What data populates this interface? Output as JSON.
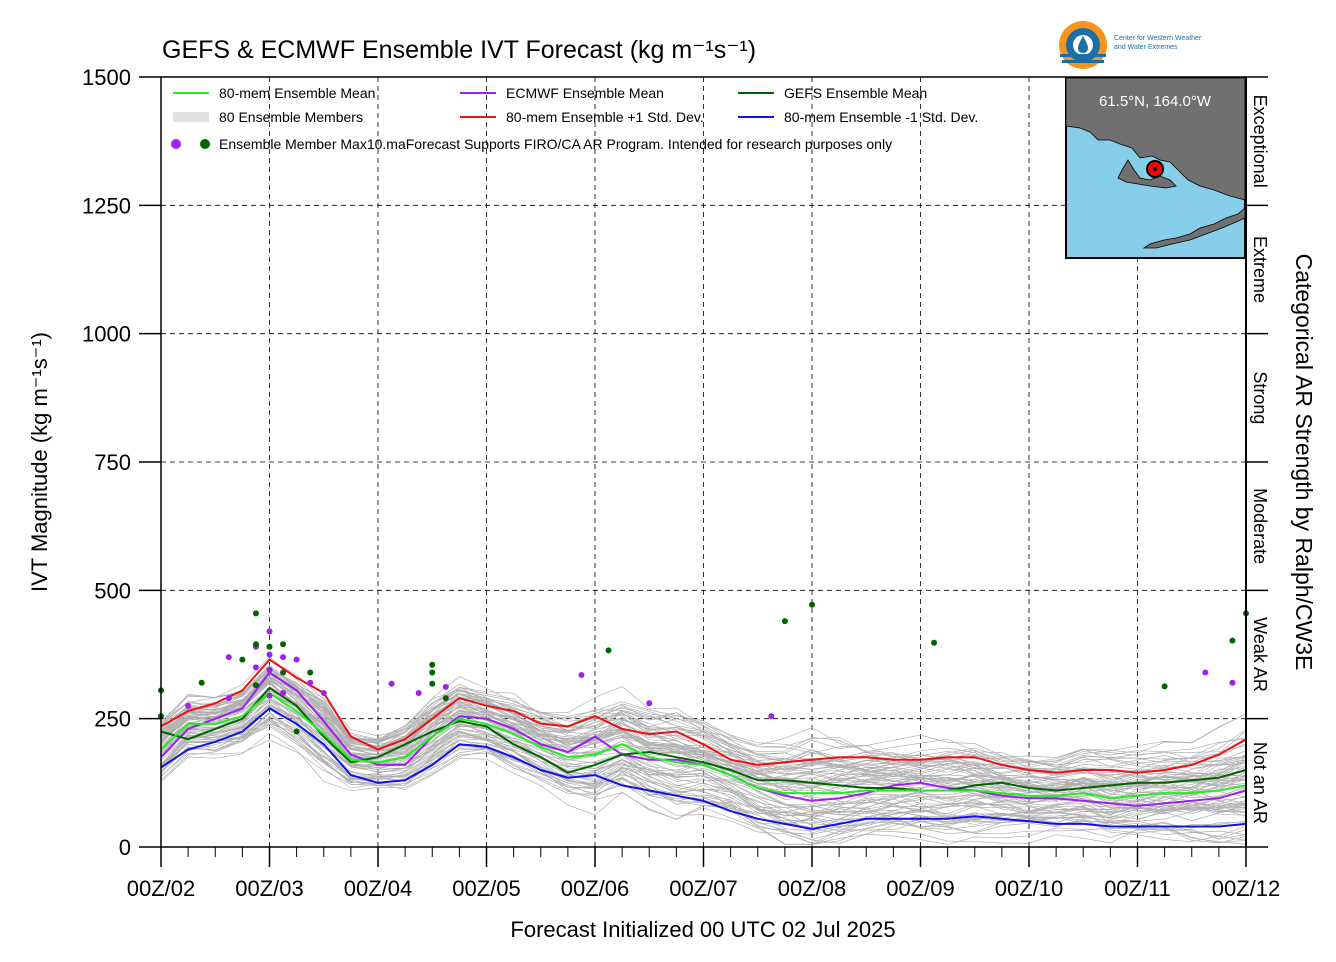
{
  "chart_data": {
    "type": "line",
    "title": "GEFS & ECMWF Ensemble IVT Forecast (kg m⁻¹s⁻¹)",
    "xlabel": "Forecast Initialized 00 UTC 02 Jul 2025",
    "ylabel": "IVT Magnitude (kg m⁻¹s⁻¹)",
    "right_axis_label": "Categorical AR Strength by Ralph/CW3E",
    "ylim": [
      0,
      1500
    ],
    "xlim": [
      0,
      240
    ],
    "x_unit": "forecast hour",
    "x_tick_labels": [
      "00Z/02",
      "00Z/03",
      "00Z/04",
      "00Z/05",
      "00Z/06",
      "00Z/07",
      "00Z/08",
      "00Z/09",
      "00Z/10",
      "00Z/11",
      "00Z/12"
    ],
    "y_ticks": [
      0,
      250,
      500,
      750,
      1000,
      1250,
      1500
    ],
    "grid": true,
    "legend_position": "top-left",
    "categories": [
      {
        "label": "Not an AR",
        "from": 0,
        "to": 250
      },
      {
        "label": "Weak AR",
        "from": 250,
        "to": 500
      },
      {
        "label": "Moderate",
        "from": 500,
        "to": 750
      },
      {
        "label": "Strong",
        "from": 750,
        "to": 1000
      },
      {
        "label": "Extreme",
        "from": 1000,
        "to": 1250
      },
      {
        "label": "Exceptional",
        "from": 1250,
        "to": 1500
      }
    ],
    "legend": [
      {
        "label": "80-mem Ensemble Mean",
        "color": "#22ee22",
        "kind": "line"
      },
      {
        "label": "ECMWF Ensemble Mean",
        "color": "#a020f0",
        "kind": "line"
      },
      {
        "label": "GEFS Ensemble Mean",
        "color": "#006400",
        "kind": "line"
      },
      {
        "label": "80 Ensemble Members",
        "color": "#b0b0b0",
        "kind": "multiline"
      },
      {
        "label": "80-mem Ensemble +1 Std. Dev.",
        "color": "#ee1111",
        "kind": "line"
      },
      {
        "label": "80-mem Ensemble -1 Std. Dev.",
        "color": "#1111ee",
        "kind": "line"
      }
    ],
    "legend_dots_label": "Ensemble Member Max10.maForecast Supports FIRO/CA AR Program. Intended for research purposes only",
    "series": [
      {
        "name": "80-mem Ensemble Mean",
        "color": "#22ee22",
        "x": [
          0,
          6,
          12,
          18,
          24,
          30,
          36,
          42,
          48,
          54,
          60,
          66,
          72,
          78,
          84,
          90,
          96,
          102,
          108,
          114,
          120,
          126,
          132,
          138,
          144,
          150,
          156,
          162,
          168,
          174,
          180,
          186,
          192,
          198,
          204,
          210,
          216,
          222,
          228,
          234,
          240
        ],
        "y": [
          190,
          240,
          240,
          255,
          300,
          265,
          220,
          170,
          165,
          175,
          215,
          250,
          240,
          220,
          195,
          175,
          180,
          200,
          175,
          165,
          160,
          140,
          115,
          105,
          105,
          105,
          110,
          110,
          110,
          110,
          110,
          105,
          100,
          100,
          105,
          95,
          100,
          105,
          105,
          110,
          120
        ]
      },
      {
        "name": "ECMWF Ensemble Mean",
        "color": "#a020f0",
        "x": [
          0,
          6,
          12,
          18,
          24,
          30,
          36,
          42,
          48,
          54,
          60,
          66,
          72,
          78,
          84,
          90,
          96,
          102,
          108,
          114,
          120,
          126,
          132,
          138,
          144,
          150,
          156,
          162,
          168,
          174,
          180,
          186,
          192,
          198,
          204,
          210,
          216,
          222,
          228,
          234,
          240
        ],
        "y": [
          175,
          230,
          250,
          270,
          340,
          305,
          245,
          180,
          160,
          160,
          215,
          255,
          250,
          230,
          200,
          185,
          215,
          180,
          170,
          170,
          160,
          140,
          115,
          100,
          90,
          95,
          105,
          120,
          125,
          115,
          110,
          100,
          95,
          95,
          90,
          85,
          80,
          85,
          90,
          95,
          110
        ]
      },
      {
        "name": "GEFS Ensemble Mean",
        "color": "#006400",
        "x": [
          0,
          6,
          12,
          18,
          24,
          30,
          36,
          42,
          48,
          54,
          60,
          66,
          72,
          78,
          84,
          90,
          96,
          102,
          108,
          114,
          120,
          126,
          132,
          138,
          144,
          150,
          156,
          162,
          168,
          174,
          180,
          186,
          192,
          198,
          204,
          210,
          216,
          222,
          228,
          234,
          240
        ],
        "y": [
          225,
          210,
          230,
          250,
          310,
          275,
          215,
          165,
          175,
          200,
          225,
          245,
          235,
          200,
          175,
          145,
          160,
          180,
          185,
          175,
          165,
          150,
          130,
          130,
          125,
          120,
          115,
          115,
          110,
          110,
          120,
          125,
          115,
          110,
          115,
          120,
          125,
          125,
          130,
          135,
          150
        ]
      },
      {
        "name": "80-mem Ensemble +1 Std. Dev.",
        "color": "#ee1111",
        "x": [
          0,
          6,
          12,
          18,
          24,
          30,
          36,
          42,
          48,
          54,
          60,
          66,
          72,
          78,
          84,
          90,
          96,
          102,
          108,
          114,
          120,
          126,
          132,
          138,
          144,
          150,
          156,
          162,
          168,
          174,
          180,
          186,
          192,
          198,
          204,
          210,
          216,
          222,
          228,
          234,
          240
        ],
        "y": [
          235,
          265,
          280,
          305,
          365,
          330,
          300,
          215,
          190,
          210,
          250,
          290,
          275,
          265,
          240,
          235,
          255,
          230,
          220,
          225,
          200,
          170,
          160,
          165,
          170,
          175,
          175,
          170,
          170,
          175,
          175,
          160,
          150,
          145,
          150,
          150,
          145,
          150,
          160,
          180,
          210
        ]
      },
      {
        "name": "80-mem Ensemble -1 Std. Dev.",
        "color": "#1111ee",
        "x": [
          0,
          6,
          12,
          18,
          24,
          30,
          36,
          42,
          48,
          54,
          60,
          66,
          72,
          78,
          84,
          90,
          96,
          102,
          108,
          114,
          120,
          126,
          132,
          138,
          144,
          150,
          156,
          162,
          168,
          174,
          180,
          186,
          192,
          198,
          204,
          210,
          216,
          222,
          228,
          234,
          240
        ],
        "y": [
          155,
          190,
          205,
          225,
          270,
          240,
          200,
          140,
          125,
          130,
          160,
          200,
          195,
          175,
          150,
          135,
          140,
          120,
          110,
          100,
          90,
          70,
          55,
          45,
          35,
          45,
          55,
          55,
          55,
          55,
          60,
          55,
          50,
          45,
          45,
          40,
          40,
          40,
          40,
          40,
          45
        ]
      }
    ],
    "ecmwf_max_points": [
      {
        "x": 6,
        "y": 275
      },
      {
        "x": 15,
        "y": 370
      },
      {
        "x": 15,
        "y": 290
      },
      {
        "x": 21,
        "y": 390
      },
      {
        "x": 21,
        "y": 350
      },
      {
        "x": 24,
        "y": 420
      },
      {
        "x": 24,
        "y": 375
      },
      {
        "x": 24,
        "y": 345
      },
      {
        "x": 24,
        "y": 295
      },
      {
        "x": 27,
        "y": 370
      },
      {
        "x": 27,
        "y": 300
      },
      {
        "x": 30,
        "y": 365
      },
      {
        "x": 33,
        "y": 320
      },
      {
        "x": 36,
        "y": 300
      },
      {
        "x": 51,
        "y": 318
      },
      {
        "x": 57,
        "y": 300
      },
      {
        "x": 63,
        "y": 312
      },
      {
        "x": 93,
        "y": 335
      },
      {
        "x": 108,
        "y": 280
      },
      {
        "x": 135,
        "y": 255
      },
      {
        "x": 231,
        "y": 340
      },
      {
        "x": 237,
        "y": 320
      }
    ],
    "gefs_max_points": [
      {
        "x": 0,
        "y": 305
      },
      {
        "x": 0,
        "y": 255
      },
      {
        "x": 9,
        "y": 320
      },
      {
        "x": 18,
        "y": 365
      },
      {
        "x": 21,
        "y": 455
      },
      {
        "x": 21,
        "y": 395
      },
      {
        "x": 21,
        "y": 315
      },
      {
        "x": 24,
        "y": 390
      },
      {
        "x": 27,
        "y": 395
      },
      {
        "x": 27,
        "y": 340
      },
      {
        "x": 30,
        "y": 225
      },
      {
        "x": 33,
        "y": 340
      },
      {
        "x": 60,
        "y": 355
      },
      {
        "x": 60,
        "y": 340
      },
      {
        "x": 60,
        "y": 318
      },
      {
        "x": 63,
        "y": 290
      },
      {
        "x": 99,
        "y": 383
      },
      {
        "x": 138,
        "y": 440
      },
      {
        "x": 144,
        "y": 472
      },
      {
        "x": 171,
        "y": 398
      },
      {
        "x": 222,
        "y": 313
      },
      {
        "x": 237,
        "y": 402
      },
      {
        "x": 240,
        "y": 455
      }
    ],
    "ensemble_members": {
      "count": 80,
      "color": "#b0b0b0",
      "drawn_as": "thin gray lines spread around the ensemble mean"
    }
  },
  "inset_map": {
    "label": "61.5°N, 164.0°W",
    "ocean_color": "#87ceeb",
    "land_color": "#707070",
    "marker_color": "#ff0000"
  },
  "logo": {
    "line1": "Center for Western Weather",
    "line2": "and Water Extremes"
  },
  "colors": {
    "grid": "#000000",
    "background": "#ffffff"
  }
}
